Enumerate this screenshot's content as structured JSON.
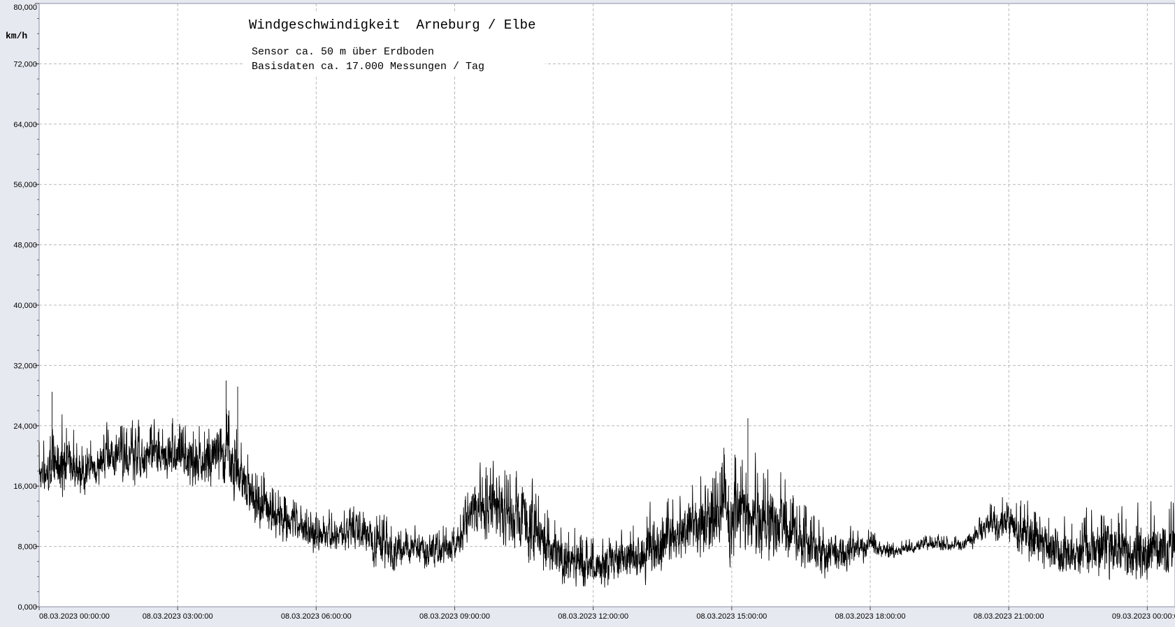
{
  "chart_data": {
    "type": "line",
    "title": "Windgeschwindigkeit  Arneburg / Elbe",
    "subtitle_lines": [
      "Sensor ca. 50 m über Erdboden",
      "Basisdaten ca. 17.000 Messungen / Tag"
    ],
    "ylabel": "km/h",
    "xlabel": "",
    "ylim": [
      0,
      80
    ],
    "xlim_hours": [
      0,
      24.6
    ],
    "y_ticks": [
      {
        "value": 0,
        "label": "0,000"
      },
      {
        "value": 8,
        "label": "8,000"
      },
      {
        "value": 16,
        "label": "16,000"
      },
      {
        "value": 24,
        "label": "24,000"
      },
      {
        "value": 32,
        "label": "32,000"
      },
      {
        "value": 40,
        "label": "40,000"
      },
      {
        "value": 48,
        "label": "48,000"
      },
      {
        "value": 56,
        "label": "56,000"
      },
      {
        "value": 64,
        "label": "64,000"
      },
      {
        "value": 72,
        "label": "72,000"
      },
      {
        "value": 80,
        "label": "80,000"
      }
    ],
    "x_ticks": [
      {
        "hour": 0,
        "label": "08.03.2023  00:00:00"
      },
      {
        "hour": 3,
        "label": "08.03.2023  03:00:00"
      },
      {
        "hour": 6,
        "label": "08.03.2023  06:00:00"
      },
      {
        "hour": 9,
        "label": "08.03.2023  09:00:00"
      },
      {
        "hour": 12,
        "label": "08.03.2023  12:00:00"
      },
      {
        "hour": 15,
        "label": "08.03.2023  15:00:00"
      },
      {
        "hour": 18,
        "label": "08.03.2023  18:00:00"
      },
      {
        "hour": 21,
        "label": "08.03.2023  21:00:00"
      },
      {
        "hour": 24,
        "label": "09.03.2023  00:00:00"
      }
    ],
    "grid": true,
    "series": [
      {
        "color": "#000000",
        "envelope_hours": [
          0,
          0.5,
          1,
          1.5,
          2,
          2.5,
          3,
          3.5,
          4,
          4.5,
          5,
          5.5,
          6,
          6.5,
          7,
          7.5,
          8,
          8.5,
          9,
          9.5,
          10,
          10.5,
          11,
          11.5,
          12,
          12.5,
          13,
          13.5,
          14,
          14.5,
          15,
          15.5,
          16,
          16.5,
          17,
          17.5,
          18,
          18.5,
          19,
          19.5,
          20,
          20.5,
          21,
          21.5,
          22,
          22.5,
          23,
          23.5,
          24,
          24.6
        ],
        "envelope_low": [
          13,
          13,
          14,
          16,
          15,
          16,
          15,
          14,
          14,
          10,
          8,
          7,
          6,
          7,
          6,
          3,
          5,
          4,
          5,
          8,
          6,
          4,
          3,
          1,
          1,
          1,
          2,
          3,
          5,
          5,
          4,
          3,
          5,
          3,
          3,
          4,
          6,
          6,
          7,
          7,
          7,
          8,
          7,
          4,
          3,
          2,
          2,
          2,
          1,
          2
        ],
        "envelope_high": [
          23,
          28,
          23,
          26,
          26,
          26,
          27,
          26,
          30,
          23,
          19,
          16,
          14,
          14,
          16,
          14,
          11,
          13,
          12,
          21,
          22,
          21,
          15,
          13,
          11,
          13,
          14,
          17,
          18,
          22,
          25,
          22,
          21,
          16,
          13,
          12,
          11,
          9,
          10,
          10,
          10,
          14,
          17,
          16,
          14,
          13,
          16,
          15,
          15,
          17
        ],
        "notable_peaks": [
          {
            "hour": 0.28,
            "value": 28.5
          },
          {
            "hour": 4.05,
            "value": 30
          },
          {
            "hour": 4.3,
            "value": 29.2
          },
          {
            "hour": 15.35,
            "value": 25
          }
        ]
      }
    ]
  }
}
